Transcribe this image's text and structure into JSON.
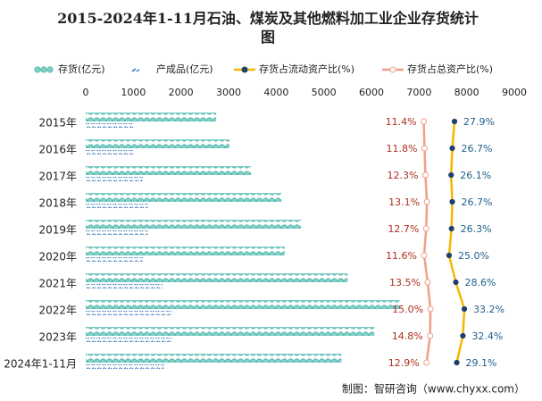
{
  "chart_data": {
    "type": "bar",
    "orientation": "horizontal",
    "title": "2015-2024年1-11月石油、煤炭及其他燃料加工业企业存货统计图",
    "source": "制图：智研咨询（www.chyxx.com）",
    "categories": [
      "2015年",
      "2016年",
      "2017年",
      "2018年",
      "2019年",
      "2020年",
      "2021年",
      "2022年",
      "2023年",
      "2024年1-11月"
    ],
    "xlim": [
      0,
      9000
    ],
    "xticks": [
      0,
      1000,
      2000,
      3000,
      4000,
      5000,
      6000,
      7000,
      8000,
      9000
    ],
    "x2lim": [
      -170,
      60
    ],
    "series": [
      {
        "name": "存货(亿元)",
        "color": "#7fd0c8",
        "values": [
          2740,
          3020,
          3470,
          4110,
          4520,
          4180,
          5500,
          6590,
          6060,
          5370
        ]
      },
      {
        "name": "产成品(亿元)",
        "color": "#2e75b6",
        "values": [
          1010,
          1010,
          1200,
          1310,
          1310,
          1200,
          1610,
          1820,
          1820,
          1650
        ]
      },
      {
        "name": "存货占流动资产比(%)",
        "color": "#f5b800",
        "axis": "x2",
        "values": [
          27.9,
          26.7,
          26.1,
          26.7,
          26.3,
          25.0,
          28.6,
          33.2,
          32.4,
          29.1
        ],
        "value_labels": [
          "27.9%",
          "26.7%",
          "26.1%",
          "26.7%",
          "26.3%",
          "25.0%",
          "28.6%",
          "33.2%",
          "32.4%",
          "29.1%"
        ]
      },
      {
        "name": "存货占总资产比(%)",
        "color": "#f0a088",
        "axis": "x2",
        "values": [
          11.4,
          11.8,
          12.3,
          13.1,
          12.7,
          11.6,
          13.5,
          15.0,
          14.8,
          12.9
        ],
        "value_labels": [
          "11.4%",
          "11.8%",
          "12.3%",
          "13.1%",
          "12.7%",
          "11.6%",
          "13.5%",
          "15.0%",
          "14.8%",
          "12.9%"
        ]
      }
    ]
  }
}
